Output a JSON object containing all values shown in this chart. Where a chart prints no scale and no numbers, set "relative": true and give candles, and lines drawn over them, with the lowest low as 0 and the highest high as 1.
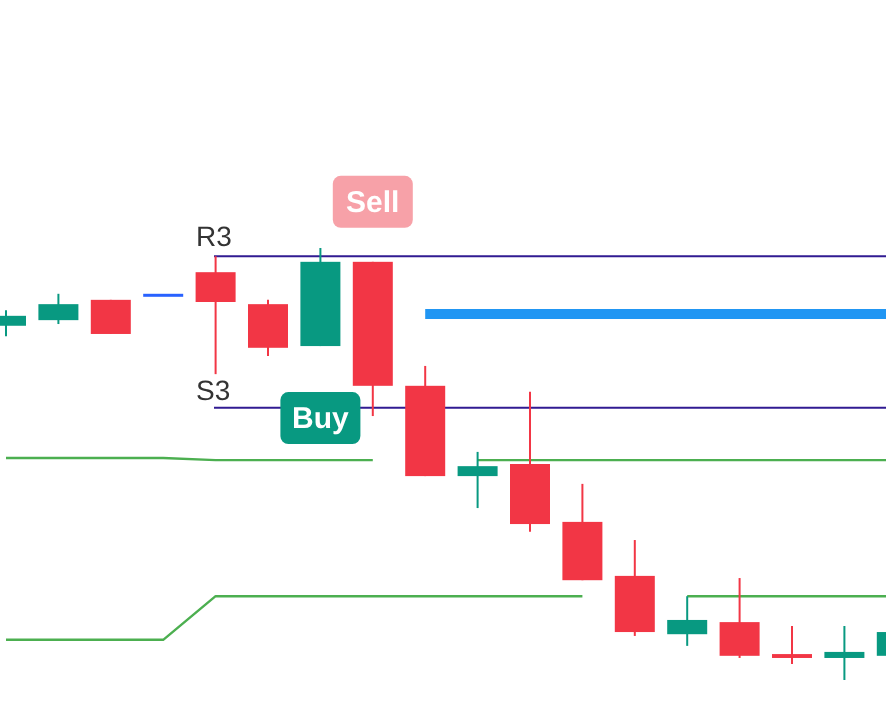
{
  "chart_data": {
    "type": "candlestick",
    "relative": true,
    "categories": [
      null,
      null,
      null,
      null,
      null,
      null,
      null,
      null,
      null,
      null,
      null,
      null,
      null,
      null,
      null,
      null,
      null,
      null
    ],
    "ohlc": [
      [
        0.82,
        0.856,
        0.796,
        0.843
      ],
      [
        0.833,
        0.894,
        0.824,
        0.87
      ],
      [
        0.88,
        0.88,
        0.801,
        0.801
      ],
      [
        0.894,
        0.894,
        0.894,
        0.894
      ],
      [
        0.944,
        0.981,
        0.708,
        0.875
      ],
      [
        0.87,
        0.88,
        0.75,
        0.769
      ],
      [
        0.773,
        1,
        0.773,
        0.968
      ],
      [
        0.968,
        0.968,
        0.611,
        0.681
      ],
      [
        0.681,
        0.727,
        0.472,
        0.472
      ],
      [
        0.472,
        0.528,
        0.398,
        0.495
      ],
      [
        0.5,
        0.667,
        0.343,
        0.361
      ],
      [
        0.366,
        0.454,
        0.231,
        0.231
      ],
      [
        0.241,
        0.324,
        0.102,
        0.111
      ],
      [
        0.106,
        0.194,
        0.079,
        0.139
      ],
      [
        0.134,
        0.236,
        0.051,
        0.056
      ],
      [
        0.06,
        0.125,
        0.037,
        0.051
      ],
      [
        0.051,
        0.125,
        0,
        0.065
      ],
      [
        0.056,
        0.111,
        0.056,
        0.111
      ]
    ],
    "colors": [
      "#089981",
      "#089981",
      "#f23645",
      "#2962ff",
      "#f23645",
      "#f23645",
      "#089981",
      "#f23645",
      "#f23645",
      "#089981",
      "#f23645",
      "#f23645",
      "#f23645",
      "#089981",
      "#f23645",
      "#f23645",
      "#089981",
      "#089981"
    ],
    "series": [
      {
        "type": "line",
        "color": "#4caf50",
        "values": [
          0.514,
          0.514,
          0.514,
          0.514,
          0.509,
          0.509,
          0.509,
          0.509,
          null,
          0.509,
          0.509,
          0.509,
          0.509,
          0.509,
          0.509,
          0.509,
          0.509,
          0.509
        ]
      },
      {
        "type": "line",
        "color": "#4caf50",
        "values": [
          0.093,
          0.093,
          0.093,
          0.093,
          0.194,
          0.194,
          0.194,
          0.194,
          0.194,
          0.194,
          0.194,
          0.194,
          null,
          0.194,
          0.194,
          0.194,
          0.194,
          0.194
        ]
      },
      {
        "type": "line",
        "color": "#2196f3",
        "values": [
          null,
          null,
          null,
          null,
          null,
          null,
          null,
          null,
          0.847,
          0.847,
          0.847,
          0.847,
          0.847,
          0.847,
          0.847,
          0.847,
          0.847,
          0.847
        ]
      }
    ],
    "ref_lines": [
      {
        "axis": "y",
        "value": 0.981,
        "label": "R3",
        "color": "#311b92"
      },
      {
        "axis": "y",
        "value": 0.63,
        "label": "S3",
        "color": "#311b92"
      }
    ],
    "annotations": [
      "Sell",
      "Buy"
    ]
  }
}
